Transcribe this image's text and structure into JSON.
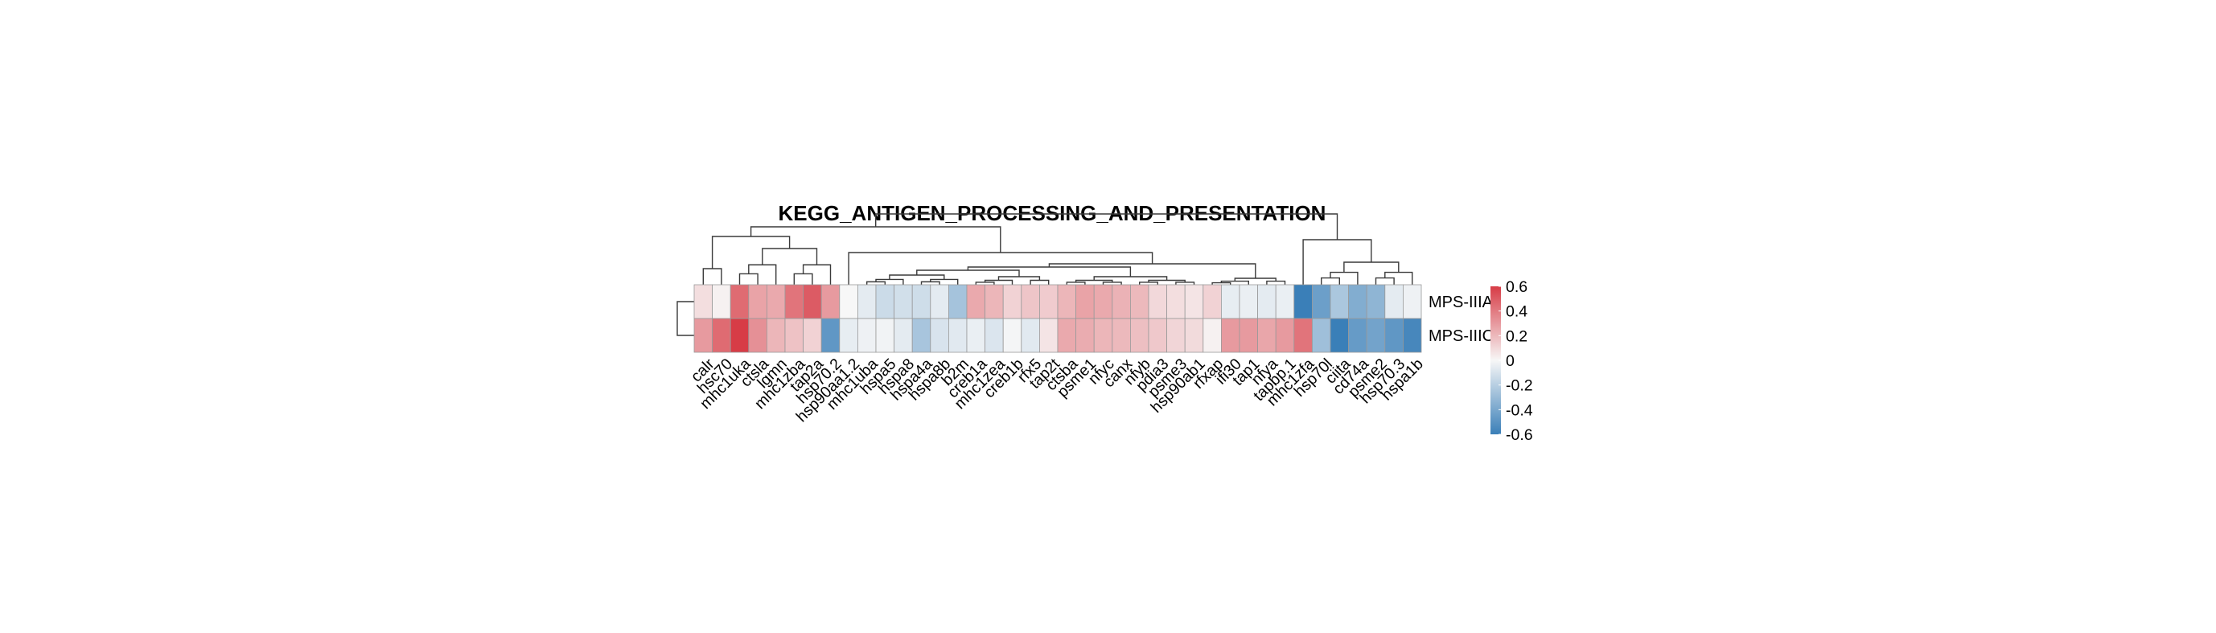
{
  "chart_data": {
    "type": "heatmap",
    "title": "KEGG_ANTIGEN_PROCESSING_AND_PRESENTATION",
    "rows": [
      "MPS-IIIA",
      "MPS-IIIC"
    ],
    "columns": [
      "calr",
      "hsc70",
      "mhc1uka",
      "ctsla",
      "lgmn",
      "mhc1zba",
      "tap2a",
      "hsp70.2",
      "hsp90aa1.2",
      "mhc1uba",
      "hspa5",
      "hspa8",
      "hspa4a",
      "hspa8b",
      "b2m",
      "creb1a",
      "mhc1zea",
      "creb1b",
      "rfx5",
      "tap2t",
      "ctsba",
      "psme1",
      "nfyc",
      "canx",
      "nfyb",
      "pdia3",
      "psme3",
      "hsp90ab1",
      "rfxap",
      "ifi30",
      "tap1",
      "nfya",
      "tapbp.1",
      "mhc1zfa",
      "hsp70l",
      "ciita",
      "cd74a",
      "psme2",
      "hsp70.3",
      "hspa1b"
    ],
    "values": [
      [
        0.08,
        0.02,
        0.45,
        0.27,
        0.25,
        0.42,
        0.5,
        0.3,
        0.0,
        -0.06,
        -0.14,
        -0.12,
        -0.13,
        -0.06,
        -0.26,
        0.25,
        0.21,
        0.12,
        0.16,
        0.14,
        0.21,
        0.27,
        0.25,
        0.22,
        0.2,
        0.1,
        0.08,
        0.06,
        0.12,
        -0.05,
        -0.04,
        -0.06,
        -0.04,
        -0.72,
        -0.44,
        -0.24,
        -0.37,
        -0.33,
        -0.06,
        -0.03
      ],
      [
        0.3,
        0.45,
        0.62,
        0.33,
        0.21,
        0.17,
        0.12,
        -0.48,
        -0.05,
        -0.03,
        -0.02,
        -0.06,
        -0.25,
        -0.1,
        -0.07,
        -0.04,
        -0.09,
        -0.01,
        -0.07,
        0.06,
        0.25,
        0.24,
        0.21,
        0.2,
        0.18,
        0.15,
        0.11,
        0.09,
        0.02,
        0.3,
        0.3,
        0.26,
        0.3,
        0.42,
        -0.28,
        -0.75,
        -0.46,
        -0.42,
        -0.48,
        -0.56
      ]
    ],
    "colorbar": {
      "ticks": [
        "0.6",
        "0.4",
        "0.2",
        "0",
        "-0.2",
        "-0.4",
        "-0.6"
      ],
      "tick_values": [
        0.6,
        0.4,
        0.2,
        0,
        -0.2,
        -0.4,
        -0.6
      ],
      "range": [
        -0.6,
        0.6
      ],
      "colors": [
        "#3a7fb8",
        "#f7f7f7",
        "#d73c46"
      ]
    },
    "row_dendrogram": true,
    "column_dendrogram": true,
    "grid": false,
    "legend_placement": "right"
  }
}
